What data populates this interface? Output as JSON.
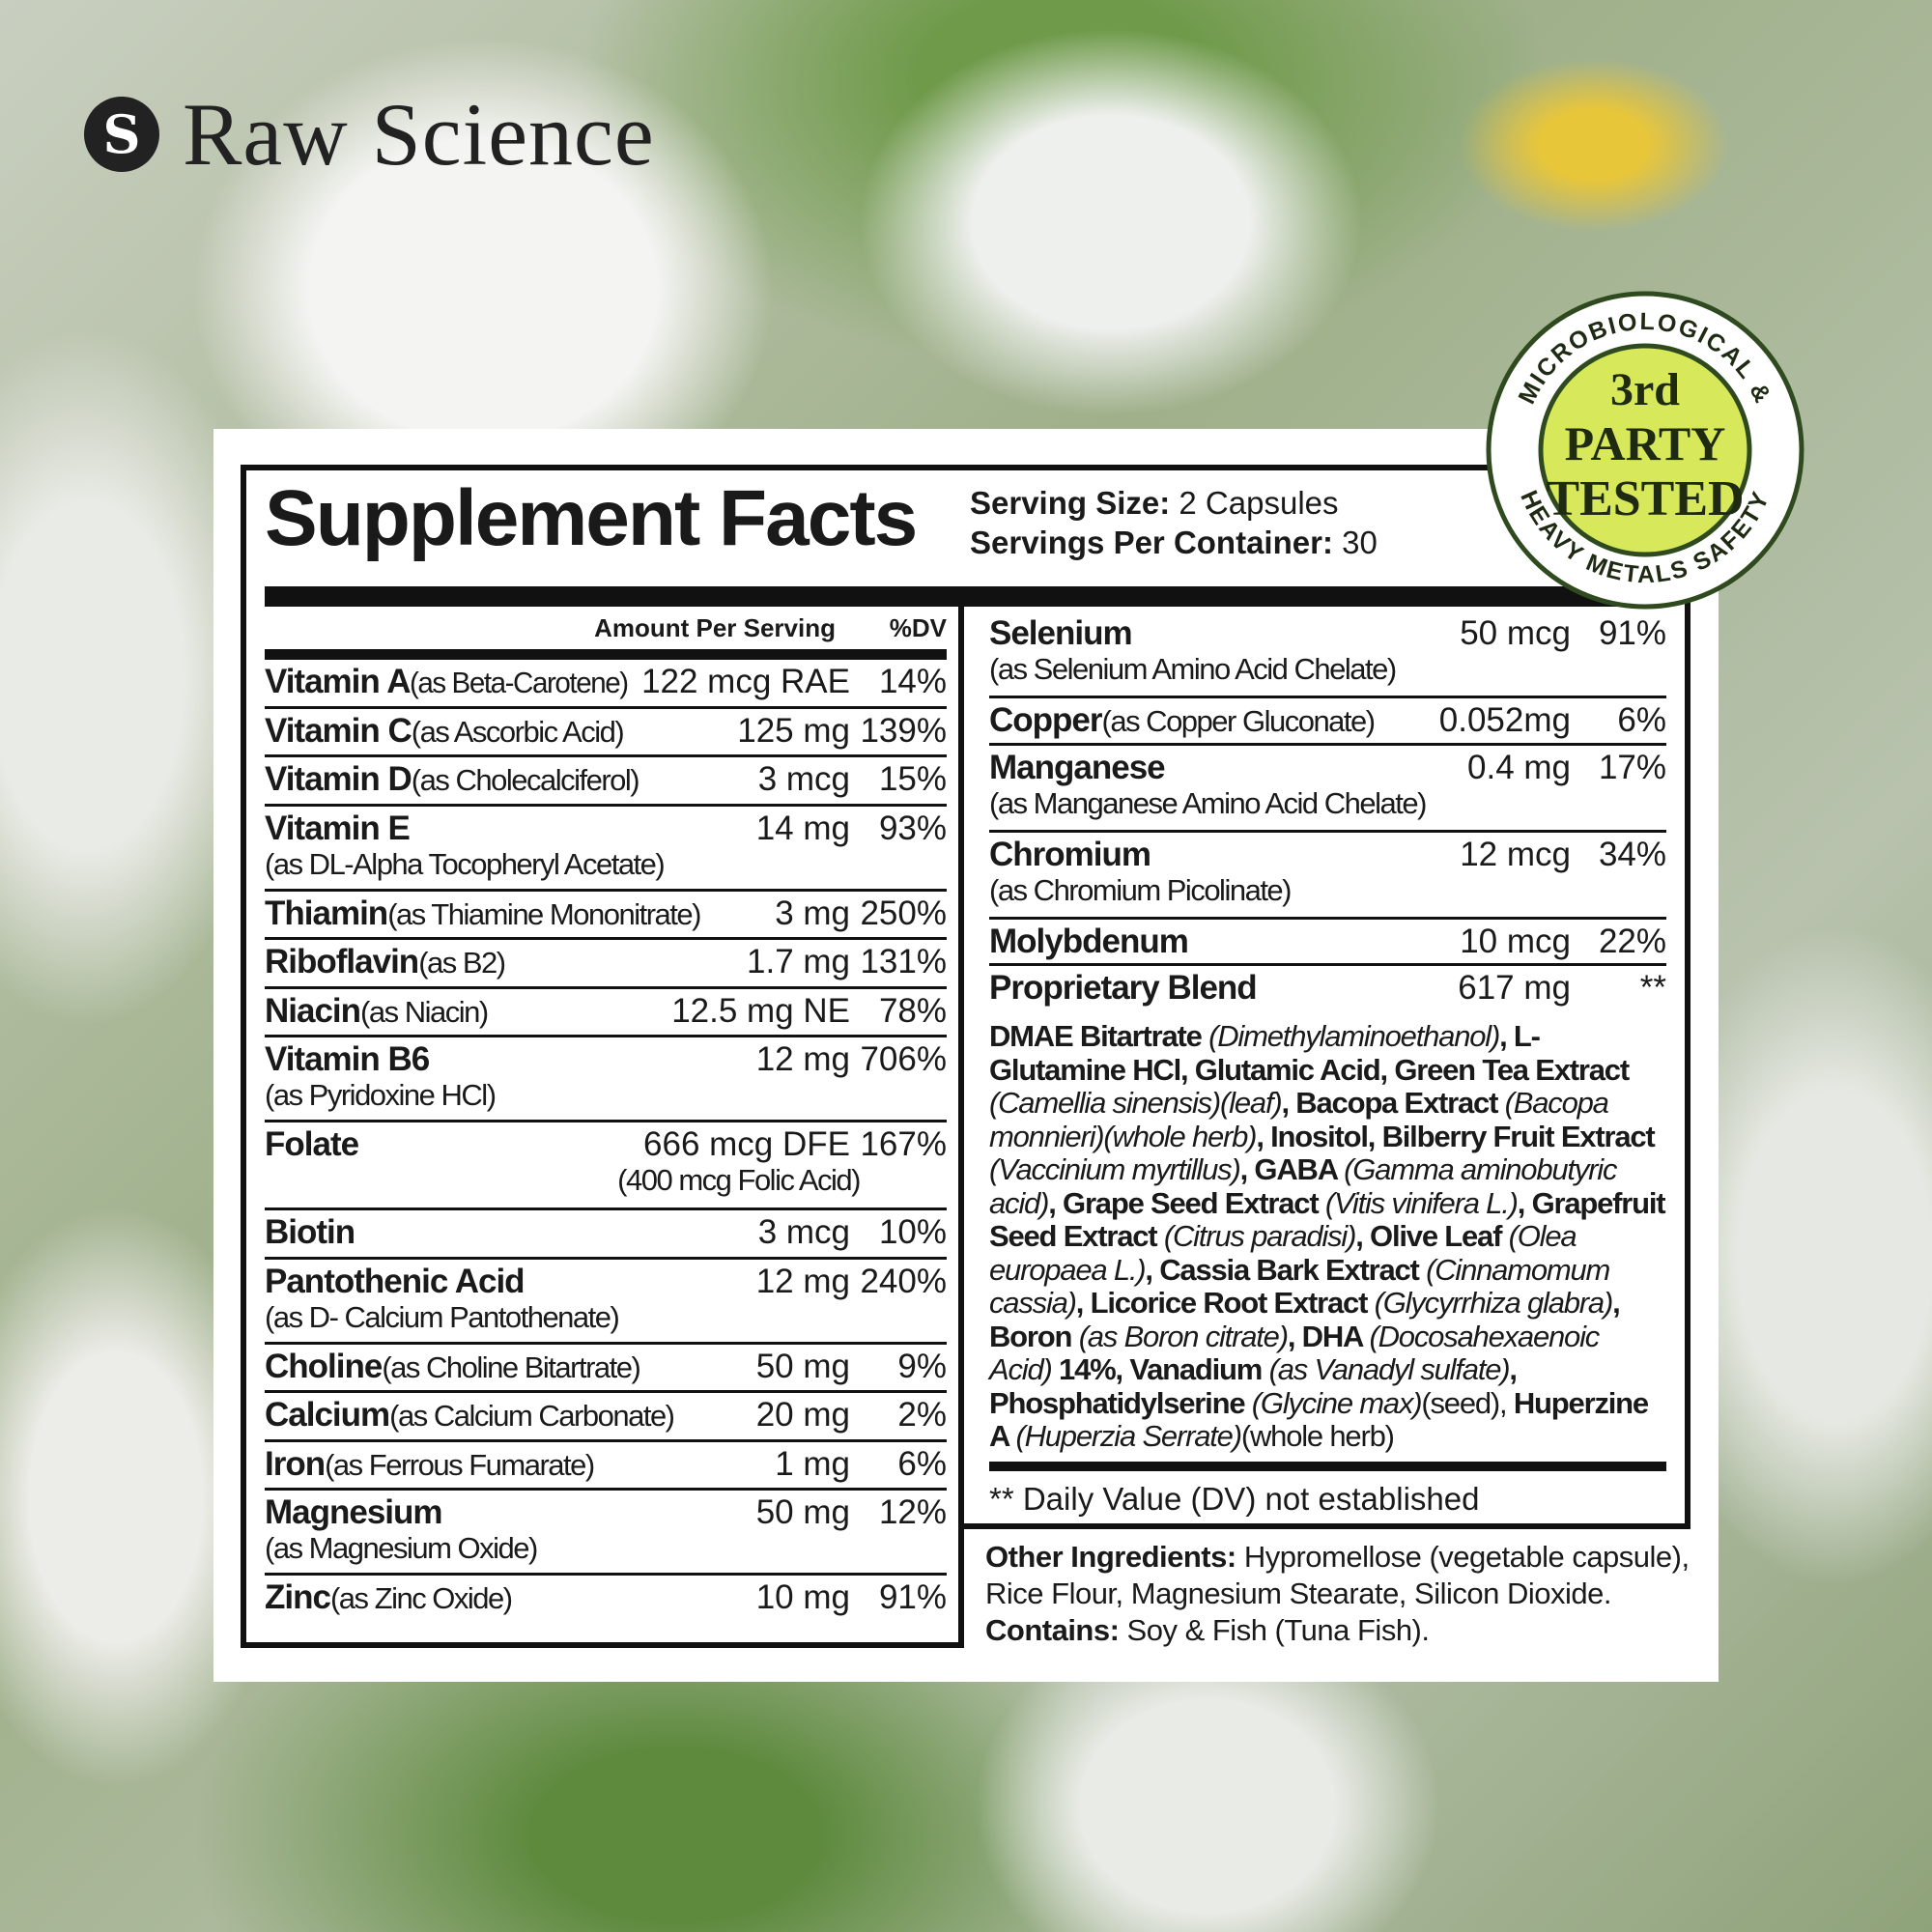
{
  "brand": {
    "name": "Raw Science",
    "icon": "leaf-s-logo-icon",
    "icon_glyph": "S"
  },
  "facts": {
    "title": "Supplement Facts",
    "serving_size_label": "Serving Size:",
    "serving_size": " 2 Capsules",
    "servings_label": "Servings Per Container:",
    "servings": " 30",
    "amount_header": "Amount Per Serving",
    "dv_header": "%DV"
  },
  "left_rows": [
    {
      "name": "Vitamin A",
      "sub": " (as Beta-Carotene)",
      "amount": "122 mcg RAE",
      "dv": "14%"
    },
    {
      "name": "Vitamin C",
      "sub": " (as Ascorbic Acid)",
      "amount": "125 mg",
      "dv": "139%"
    },
    {
      "name": "Vitamin D",
      "sub": " (as Cholecalciferol)",
      "amount": "3 mcg",
      "dv": "15%"
    },
    {
      "name": "Vitamin E",
      "sub2": "(as DL-Alpha Tocopheryl Acetate)",
      "amount": "14 mg",
      "dv": "93%"
    },
    {
      "name": "Thiamin",
      "sub": " (as Thiamine Mononitrate)",
      "amount": "3 mg",
      "dv": "250%"
    },
    {
      "name": "Riboflavin",
      "sub": " (as B2)",
      "amount": "1.7 mg",
      "dv": "131%"
    },
    {
      "name": "Niacin",
      "sub": " (as Niacin)",
      "amount": "12.5 mg NE",
      "dv": "78%"
    },
    {
      "name": "Vitamin B6",
      "sub2": "(as Pyridoxine HCl)",
      "amount": "12 mg",
      "dv": "706%"
    },
    {
      "name": "Folate",
      "amount": "666 mcg DFE",
      "amount_sub": "(400 mcg Folic Acid)",
      "dv": "167%"
    },
    {
      "name": "Biotin",
      "amount": "3 mcg",
      "dv": "10%"
    },
    {
      "name": "Pantothenic Acid",
      "sub2": "(as D- Calcium Pantothenate)",
      "amount": "12 mg",
      "dv": "240%"
    },
    {
      "name": "Choline",
      "sub": " (as Choline Bitartrate)",
      "amount": "50 mg",
      "dv": "9%"
    },
    {
      "name": "Calcium",
      "sub": " (as Calcium Carbonate)",
      "amount": "20 mg",
      "dv": "2%"
    },
    {
      "name": "Iron",
      "sub": " (as Ferrous Fumarate)",
      "amount": "1 mg",
      "dv": "6%"
    },
    {
      "name": "Magnesium",
      "sub2": "(as Magnesium Oxide)",
      "amount": "50 mg",
      "dv": "12%"
    },
    {
      "name": "Zinc",
      "sub": " (as Zinc Oxide)",
      "amount": "10 mg",
      "dv": "91%"
    }
  ],
  "right_rows": [
    {
      "name": "Selenium",
      "sub2": "(as Selenium Amino Acid Chelate)",
      "amount": "50 mcg",
      "dv": "91%"
    },
    {
      "name": "Copper",
      "sub": " (as Copper Gluconate)",
      "amount": "0.052mg",
      "dv": "6%"
    },
    {
      "name": "Manganese",
      "sub2": "(as Manganese Amino Acid Chelate)",
      "amount": "0.4 mg",
      "dv": "17%"
    },
    {
      "name": "Chromium",
      "sub2": "(as Chromium Picolinate)",
      "amount": "12 mcg",
      "dv": "34%"
    },
    {
      "name": "Molybdenum",
      "amount": "10 mcg",
      "dv": "22%"
    }
  ],
  "blend": {
    "name": "Proprietary Blend",
    "amount": "617 mg",
    "dv": "**",
    "segments": [
      {
        "t": "DMAE Bitartrate ",
        "s": "b"
      },
      {
        "t": "(Dimethylaminoethanol)",
        "s": "i"
      },
      {
        "t": ", L-Glutamine HCl, Glutamic Acid, Green Tea Extract ",
        "s": "b"
      },
      {
        "t": "(Camellia sinensis)(leaf)",
        "s": "i"
      },
      {
        "t": ", Bacopa Extract ",
        "s": "b"
      },
      {
        "t": "(Bacopa monnieri)(whole herb)",
        "s": "i"
      },
      {
        "t": ", Inositol, Bilberry Fruit Extract ",
        "s": "b"
      },
      {
        "t": "(Vaccinium myrtillus)",
        "s": "i"
      },
      {
        "t": ", GABA ",
        "s": "b"
      },
      {
        "t": "(Gamma aminobutyric acid)",
        "s": "i"
      },
      {
        "t": ", Grape Seed Extract ",
        "s": "b"
      },
      {
        "t": "(Vitis vinifera L.)",
        "s": "i"
      },
      {
        "t": ", Grapefruit Seed Extract ",
        "s": "b"
      },
      {
        "t": "(Citrus paradisi)",
        "s": "i"
      },
      {
        "t": ", Olive Leaf ",
        "s": "b"
      },
      {
        "t": "(Olea europaea L.)",
        "s": "i"
      },
      {
        "t": ", Cassia Bark Extract ",
        "s": "b"
      },
      {
        "t": "(Cinnamomum cassia)",
        "s": "i"
      },
      {
        "t": ", Licorice Root Extract ",
        "s": "b"
      },
      {
        "t": "(Glycyrrhiza glabra)",
        "s": "i"
      },
      {
        "t": ", Boron ",
        "s": "b"
      },
      {
        "t": "(as Boron citrate)",
        "s": "i"
      },
      {
        "t": ", DHA ",
        "s": "b"
      },
      {
        "t": "(Docosahexaenoic Acid)",
        "s": "i"
      },
      {
        "t": " 14%, Vanadium ",
        "s": "b"
      },
      {
        "t": "(as Vanadyl sulfate)",
        "s": "i"
      },
      {
        "t": ", Phosphatidylserine ",
        "s": "b"
      },
      {
        "t": "(Glycine max)",
        "s": "i"
      },
      {
        "t": "(seed), ",
        "s": "r"
      },
      {
        "t": "Huperzine A ",
        "s": "b"
      },
      {
        "t": "(Huperzia Serrate)",
        "s": "i"
      },
      {
        "t": "(whole herb)",
        "s": "r"
      }
    ]
  },
  "footnote": "** Daily Value (DV) not established",
  "other": {
    "label": "Other Ingredients:",
    "text": " Hypromellose (vegetable capsule), Rice Flour, Magnesium Stearate, Silicon Dioxide.",
    "contains_label": "Contains:",
    "contains": " Soy & Fish (Tuna Fish)."
  },
  "badge": {
    "top_arc": "MICROBIOLOGICAL &",
    "bottom_arc": "HEAVY METALS SAFETY",
    "line1": "3rd",
    "line2": "PARTY",
    "line3": "TESTED",
    "colors": {
      "fill": "#d7e85a",
      "ring": "#2f4a1e",
      "text": "#1e2a12"
    }
  }
}
